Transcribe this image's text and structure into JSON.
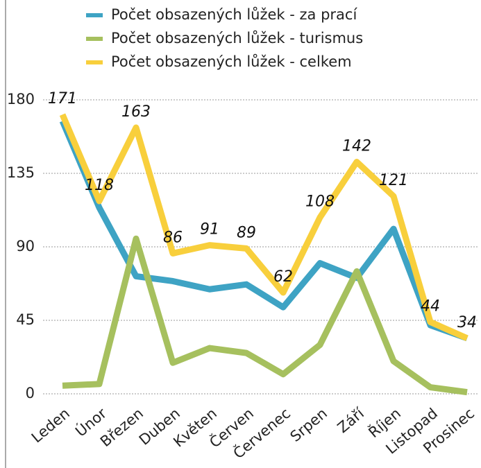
{
  "chart_data": {
    "type": "line",
    "categories": [
      "Leden",
      "Únor",
      "Březen",
      "Duben",
      "Květen",
      "Červen",
      "Červenec",
      "Srpen",
      "Září",
      "Říjen",
      "Listopad",
      "Prosinec"
    ],
    "series": [
      {
        "name": "Počet obsazených lůžek - za prací",
        "color": "#3ea3c4",
        "values": [
          167,
          114,
          72,
          69,
          64,
          67,
          53,
          80,
          71,
          101,
          42,
          34
        ]
      },
      {
        "name": "Počet obsazených lůžek - turismus",
        "color": "#a6c05e",
        "values": [
          5,
          6,
          95,
          19,
          28,
          25,
          12,
          30,
          75,
          20,
          4,
          1
        ]
      },
      {
        "name": "Počet obsazených lůžek - celkem",
        "color": "#f8cf3c",
        "values": [
          171,
          118,
          163,
          86,
          91,
          89,
          62,
          108,
          142,
          121,
          44,
          34
        ]
      }
    ],
    "label_series": 2,
    "ylim": [
      0,
      180
    ],
    "yticks": [
      0,
      45,
      90,
      135,
      180
    ],
    "grid": true,
    "legend": "top"
  }
}
